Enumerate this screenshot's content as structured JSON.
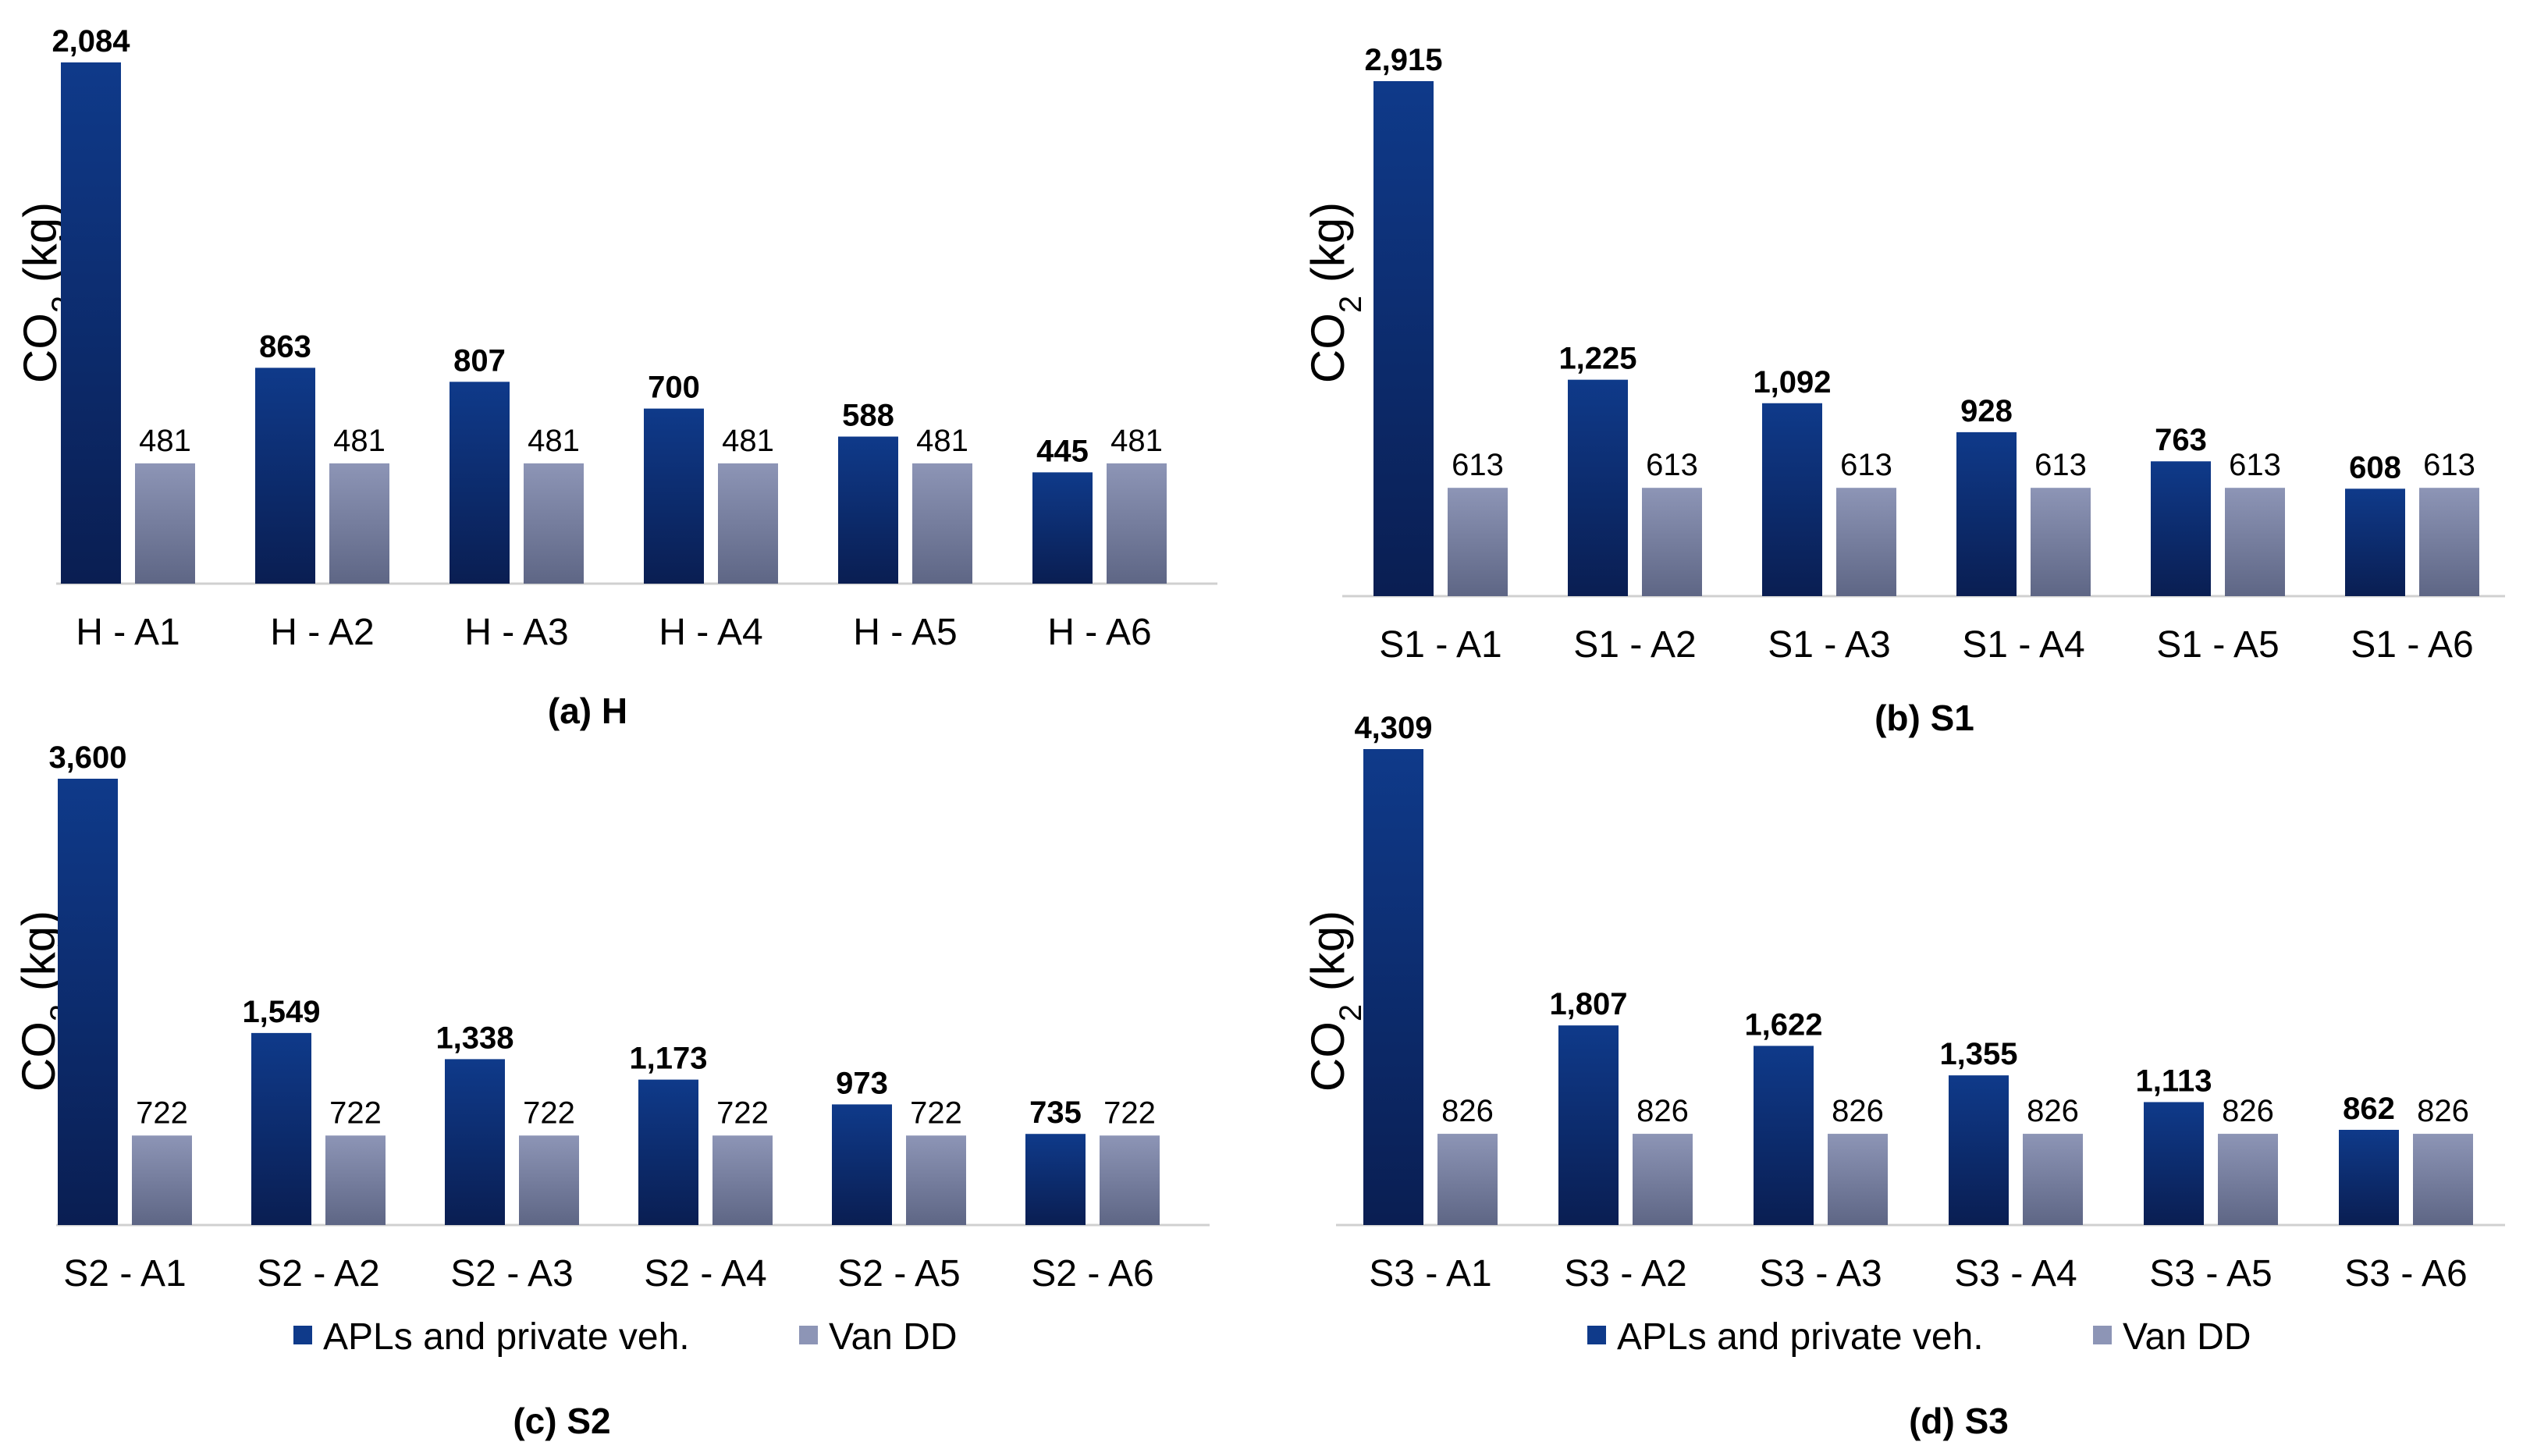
{
  "colors": {
    "series_a_top": "#0f3a8a",
    "series_a_bottom": "#0a1e52",
    "series_b_top": "#8d95b6",
    "series_b_bottom": "#5e6685",
    "axis": "#d0d0d0"
  },
  "legend": {
    "series_a": "APLs and  private veh.",
    "series_b": "Van DD"
  },
  "chart_data": [
    {
      "type": "bar",
      "caption": "(a) H",
      "ylabel_main": "CO",
      "ylabel_sub": "2",
      "ylabel_unit": " (kg)",
      "categories": [
        "H - A1",
        "H - A2",
        "H - A3",
        "H - A4",
        "H - A5",
        "H - A6"
      ],
      "series": [
        {
          "name": "APLs and  private veh.",
          "values": [
            2084,
            863,
            807,
            700,
            588,
            445
          ],
          "labels": [
            "2,084",
            "863",
            "807",
            "700",
            "588",
            "445"
          ]
        },
        {
          "name": "Van DD",
          "values": [
            481,
            481,
            481,
            481,
            481,
            481
          ],
          "labels": [
            "481",
            "481",
            "481",
            "481",
            "481",
            "481"
          ]
        }
      ],
      "ylim": [
        0,
        2084
      ],
      "grid": false,
      "legend": false
    },
    {
      "type": "bar",
      "caption": "(b) S1",
      "ylabel_main": "CO",
      "ylabel_sub": "2",
      "ylabel_unit": " (kg)",
      "categories": [
        "S1 - A1",
        "S1 - A2",
        "S1 - A3",
        "S1 - A4",
        "S1 - A5",
        "S1 - A6"
      ],
      "series": [
        {
          "name": "APLs and  private veh.",
          "values": [
            2915,
            1225,
            1092,
            928,
            763,
            608
          ],
          "labels": [
            "2,915",
            "1,225",
            "1,092",
            "928",
            "763",
            "608"
          ]
        },
        {
          "name": "Van DD",
          "values": [
            613,
            613,
            613,
            613,
            613,
            613
          ],
          "labels": [
            "613",
            "613",
            "613",
            "613",
            "613",
            "613"
          ]
        }
      ],
      "ylim": [
        0,
        2915
      ],
      "grid": false,
      "legend": false
    },
    {
      "type": "bar",
      "caption": "(c) S2",
      "ylabel_main": "CO",
      "ylabel_sub": "2",
      "ylabel_unit": " (kg)",
      "categories": [
        "S2 - A1",
        "S2 - A2",
        "S2 - A3",
        "S2 - A4",
        "S2 - A5",
        "S2 - A6"
      ],
      "series": [
        {
          "name": "APLs and  private veh.",
          "values": [
            3600,
            1549,
            1338,
            1173,
            973,
            735
          ],
          "labels": [
            "3,600",
            "1,549",
            "1,338",
            "1,173",
            "973",
            "735"
          ]
        },
        {
          "name": "Van DD",
          "values": [
            722,
            722,
            722,
            722,
            722,
            722
          ],
          "labels": [
            "722",
            "722",
            "722",
            "722",
            "722",
            "722"
          ]
        }
      ],
      "ylim": [
        0,
        3600
      ],
      "grid": false,
      "legend": true
    },
    {
      "type": "bar",
      "caption": "(d) S3",
      "ylabel_main": "CO",
      "ylabel_sub": "2",
      "ylabel_unit": " (kg)",
      "categories": [
        "S3 - A1",
        "S3 - A2",
        "S3 - A3",
        "S3 - A4",
        "S3 - A5",
        "S3 - A6"
      ],
      "series": [
        {
          "name": "APLs and  private veh.",
          "values": [
            4309,
            1807,
            1622,
            1355,
            1113,
            862
          ],
          "labels": [
            "4,309",
            "1,807",
            "1,622",
            "1,355",
            "1,113",
            "862"
          ]
        },
        {
          "name": "Van DD",
          "values": [
            826,
            826,
            826,
            826,
            826,
            826
          ],
          "labels": [
            "826",
            "826",
            "826",
            "826",
            "826",
            "826"
          ]
        }
      ],
      "ylim": [
        0,
        4309
      ],
      "grid": false,
      "legend": true
    }
  ]
}
